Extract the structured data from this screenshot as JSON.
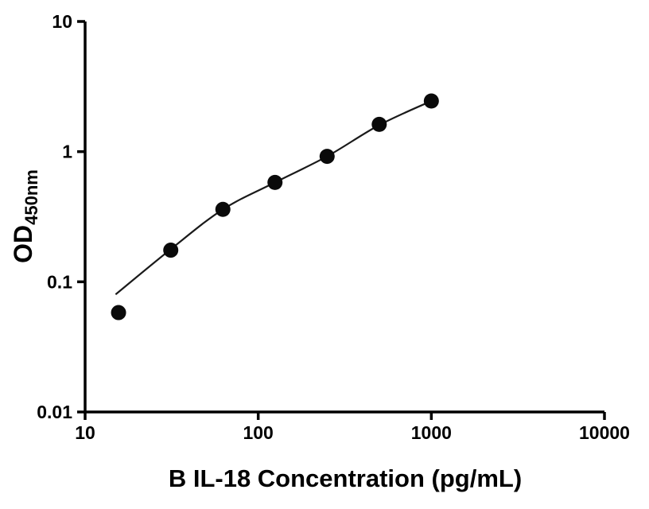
{
  "chart_data": {
    "type": "scatter",
    "title": "",
    "xlabel": "B IL-18 Concentration (pg/mL)",
    "ylabel_main": "OD",
    "ylabel_sub": "450nm",
    "x_scale": "log",
    "y_scale": "log",
    "xlim": [
      10,
      10000
    ],
    "ylim": [
      0.01,
      10
    ],
    "x_tick_values": [
      10,
      100,
      1000,
      10000
    ],
    "x_tick_labels": [
      "10",
      "100",
      "1000",
      "10000"
    ],
    "y_tick_values": [
      0.01,
      0.1,
      1,
      10
    ],
    "y_tick_labels": [
      "0.01",
      "0.1",
      "1",
      "10"
    ],
    "grid": false,
    "legend": false,
    "series": [
      {
        "x": [
          15.6,
          31.25,
          62.5,
          125,
          250,
          500,
          1000
        ],
        "y": [
          0.058,
          0.175,
          0.36,
          0.58,
          0.92,
          1.62,
          2.45
        ]
      }
    ],
    "fit_curve": [
      [
        15,
        0.08
      ],
      [
        31.25,
        0.178
      ],
      [
        62.5,
        0.36
      ],
      [
        125,
        0.58
      ],
      [
        250,
        0.92
      ],
      [
        500,
        1.6
      ],
      [
        1000,
        2.45
      ]
    ],
    "colors": {
      "points": "#0a0a0a",
      "line": "#1a1a1a",
      "axes": "#000000"
    }
  }
}
